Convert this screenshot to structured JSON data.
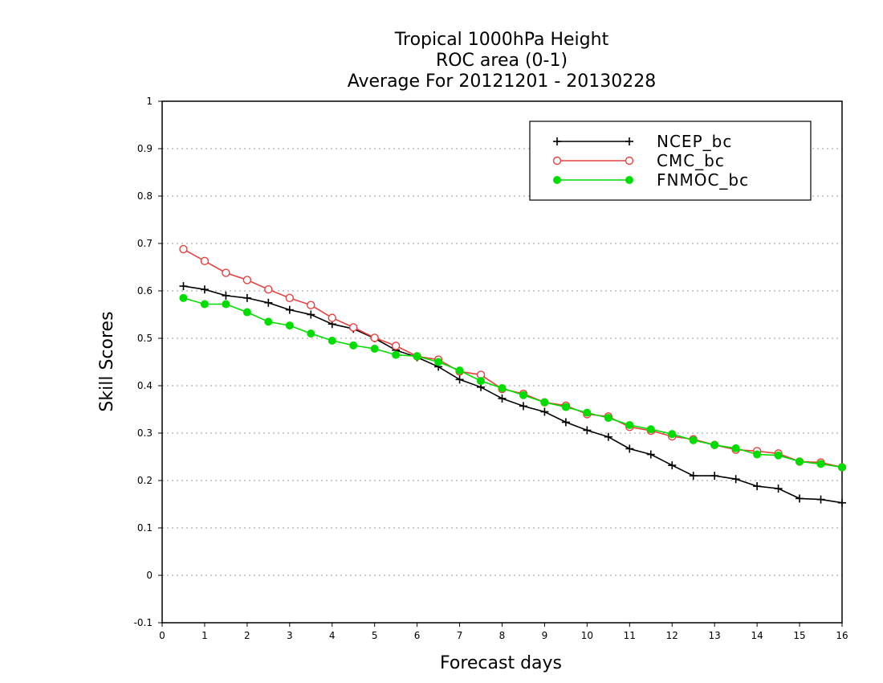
{
  "chart_data": {
    "type": "line",
    "title": "Tropical 1000hPa Height",
    "subtitle": "ROC area (0-1)",
    "subtitle2": "Average For 20121201 - 20130228",
    "xlabel": "Forecast days",
    "ylabel": "Skill Scores",
    "xlim": [
      0,
      16
    ],
    "ylim": [
      -0.1,
      1
    ],
    "xticks": [
      "0",
      "1",
      "2",
      "3",
      "4",
      "5",
      "6",
      "7",
      "8",
      "9",
      "10",
      "11",
      "12",
      "13",
      "14",
      "15",
      "16"
    ],
    "yticks": [
      "-0.1",
      "0",
      "0.1",
      "0.2",
      "0.3",
      "0.4",
      "0.5",
      "0.6",
      "0.7",
      "0.8",
      "0.9",
      "1"
    ],
    "grid": true,
    "legend_position": "top-right",
    "x": [
      0.5,
      1,
      1.5,
      2,
      2.5,
      3,
      3.5,
      4,
      4.5,
      5,
      5.5,
      6,
      6.5,
      7,
      7.5,
      8,
      8.5,
      9,
      9.5,
      10,
      10.5,
      11,
      11.5,
      12,
      12.5,
      13,
      13.5,
      14,
      14.5,
      15,
      15.5,
      16
    ],
    "series": [
      {
        "name": "NCEP_bc",
        "color": "#000000",
        "marker": "plus",
        "values": [
          0.61,
          0.603,
          0.59,
          0.585,
          0.575,
          0.56,
          0.55,
          0.53,
          0.52,
          0.5,
          0.475,
          0.46,
          0.44,
          0.413,
          0.397,
          0.373,
          0.357,
          0.345,
          0.323,
          0.306,
          0.292,
          0.267,
          0.255,
          0.232,
          0.21,
          0.21,
          0.203,
          0.188,
          0.183,
          0.162,
          0.16,
          0.153
        ]
      },
      {
        "name": "CMC_bc",
        "color": "#e8403f",
        "marker": "open-circle",
        "values": [
          0.688,
          0.663,
          0.638,
          0.623,
          0.603,
          0.585,
          0.57,
          0.543,
          0.523,
          0.501,
          0.484,
          0.462,
          0.455,
          0.43,
          0.423,
          0.393,
          0.383,
          0.365,
          0.358,
          0.34,
          0.335,
          0.313,
          0.305,
          0.293,
          0.287,
          0.275,
          0.265,
          0.262,
          0.257,
          0.24,
          0.238,
          0.228
        ]
      },
      {
        "name": "FNMOC_bc",
        "color": "#00dd00",
        "marker": "filled-circle",
        "values": [
          0.585,
          0.572,
          0.572,
          0.555,
          0.535,
          0.527,
          0.51,
          0.495,
          0.485,
          0.478,
          0.465,
          0.462,
          0.45,
          0.432,
          0.41,
          0.395,
          0.38,
          0.365,
          0.355,
          0.343,
          0.332,
          0.317,
          0.308,
          0.298,
          0.285,
          0.275,
          0.268,
          0.255,
          0.253,
          0.24,
          0.235,
          0.228
        ]
      }
    ]
  }
}
